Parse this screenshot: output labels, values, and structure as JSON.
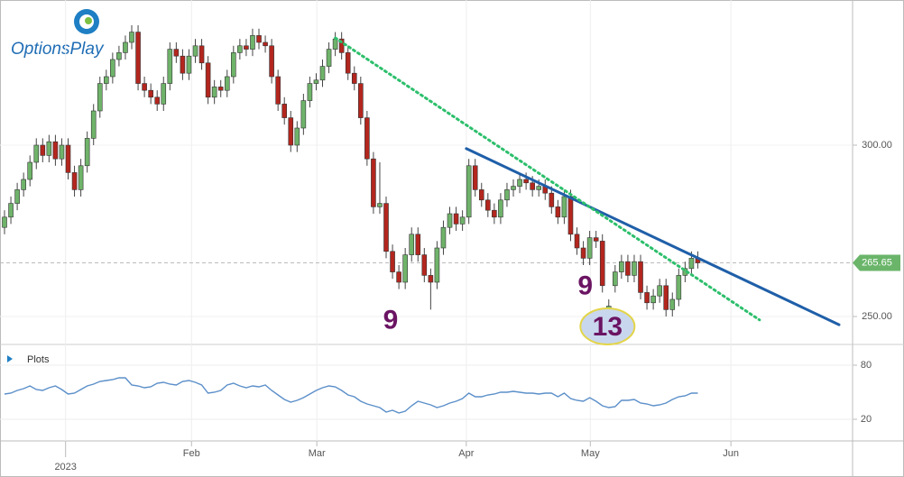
{
  "logo": "OptionsPlay",
  "chart_data": {
    "type": "candlestick",
    "panel_label": "Plots",
    "open": [
      276,
      279,
      283,
      287,
      290,
      295,
      300,
      297,
      301,
      296,
      300,
      292,
      287,
      294,
      302,
      310,
      318,
      320,
      325,
      327,
      330,
      333,
      318,
      316,
      314,
      312,
      318,
      328,
      326,
      321,
      326,
      329,
      324,
      314,
      317,
      316,
      320,
      327,
      329,
      328,
      332,
      330,
      329,
      320,
      312,
      308,
      300,
      305,
      313,
      318,
      319,
      323,
      328,
      331,
      327,
      321,
      318,
      308,
      296,
      282,
      283,
      269,
      263,
      260,
      268,
      274,
      268,
      262,
      260,
      270,
      276,
      280,
      277,
      279,
      294,
      287,
      284,
      281,
      279,
      284,
      287,
      288,
      290,
      289,
      287,
      288,
      286,
      282,
      279,
      285,
      274,
      270,
      267,
      273,
      272,
      252,
      259,
      263,
      266,
      262,
      266,
      257,
      254,
      256,
      259,
      252,
      255,
      262,
      264,
      267
    ],
    "high": [
      281,
      285,
      289,
      292,
      297,
      302,
      302,
      303,
      303,
      302,
      302,
      294,
      296,
      304,
      312,
      320,
      322,
      327,
      329,
      332,
      335,
      335,
      320,
      318,
      316,
      320,
      330,
      330,
      328,
      328,
      331,
      331,
      326,
      319,
      319,
      322,
      329,
      331,
      331,
      334,
      334,
      332,
      331,
      322,
      314,
      310,
      307,
      315,
      320,
      321,
      325,
      330,
      333,
      333,
      329,
      323,
      320,
      310,
      298,
      295,
      285,
      271,
      265,
      270,
      276,
      276,
      270,
      264,
      272,
      278,
      282,
      282,
      281,
      296,
      296,
      289,
      286,
      283,
      286,
      289,
      290,
      292,
      292,
      291,
      290,
      290,
      288,
      284,
      287,
      287,
      276,
      272,
      275,
      275,
      274,
      255,
      265,
      268,
      268,
      268,
      268,
      259,
      258,
      261,
      261,
      257,
      264,
      266,
      269,
      269
    ],
    "low": [
      274,
      277,
      281,
      285,
      288,
      293,
      295,
      295,
      294,
      294,
      290,
      285,
      285,
      292,
      300,
      308,
      316,
      318,
      323,
      325,
      328,
      316,
      314,
      312,
      310,
      310,
      316,
      324,
      319,
      319,
      324,
      322,
      312,
      312,
      314,
      314,
      318,
      325,
      326,
      326,
      328,
      327,
      318,
      310,
      306,
      298,
      298,
      303,
      311,
      316,
      317,
      321,
      326,
      325,
      319,
      316,
      306,
      294,
      280,
      280,
      267,
      261,
      258,
      258,
      266,
      266,
      260,
      252,
      258,
      268,
      274,
      275,
      275,
      277,
      285,
      282,
      279,
      277,
      277,
      282,
      285,
      286,
      287,
      285,
      285,
      284,
      280,
      277,
      277,
      272,
      268,
      265,
      265,
      270,
      257,
      250,
      257,
      261,
      260,
      260,
      255,
      252,
      252,
      254,
      250,
      250,
      253,
      260,
      262,
      264
    ],
    "close": [
      279,
      283,
      287,
      290,
      295,
      300,
      297,
      301,
      296,
      300,
      292,
      287,
      294,
      302,
      310,
      318,
      320,
      325,
      327,
      330,
      333,
      318,
      316,
      314,
      312,
      318,
      328,
      326,
      321,
      326,
      329,
      324,
      314,
      317,
      316,
      320,
      327,
      329,
      328,
      332,
      330,
      329,
      320,
      312,
      308,
      300,
      305,
      313,
      318,
      319,
      323,
      328,
      331,
      327,
      321,
      318,
      308,
      296,
      282,
      283,
      269,
      263,
      260,
      268,
      274,
      268,
      262,
      260,
      270,
      276,
      280,
      277,
      279,
      294,
      287,
      284,
      281,
      279,
      284,
      287,
      288,
      290,
      289,
      287,
      288,
      286,
      282,
      279,
      285,
      274,
      270,
      267,
      273,
      272,
      259,
      253,
      263,
      266,
      262,
      266,
      257,
      254,
      256,
      259,
      252,
      255,
      262,
      264,
      267,
      265.65
    ],
    "up_color": "#6fb36a",
    "down_color": "#b3261e",
    "last_price": {
      "value": 265.65,
      "label": "265.65",
      "color": "#6ab56a"
    },
    "ylim": [
      241.84,
      341.05
    ],
    "yticks": [
      {
        "value": 250,
        "label": "250.00"
      },
      {
        "value": 300,
        "label": "300.00"
      }
    ],
    "xlim": [
      -0.71,
      133.33
    ],
    "xticks": [
      {
        "value": 9.6,
        "label": "2023"
      },
      {
        "value": 29.4,
        "label": "Feb"
      },
      {
        "value": 49.1,
        "label": "Mar"
      },
      {
        "value": 72.6,
        "label": "Apr"
      },
      {
        "value": 92.1,
        "label": "May"
      },
      {
        "value": 114.2,
        "label": "Jun"
      }
    ],
    "grid": true,
    "lines": [
      {
        "color": "#1f5fa8",
        "style": "solid",
        "x": [
          72.6,
          131.2
        ],
        "y": [
          299,
          247.6
        ]
      },
      {
        "color": "#2dbf6c",
        "style": "dotted",
        "x": [
          52,
          118.7
        ],
        "y": [
          331.3,
          249
        ]
      }
    ],
    "annotations": [
      {
        "text": "9",
        "x": 60.7,
        "y": 249
      },
      {
        "text": "9",
        "x": 91.3,
        "y": 259
      },
      {
        "text": "13",
        "x": 94.8,
        "y": 247.1,
        "circled": true
      }
    ],
    "indicator": {
      "type": "line",
      "color": "#5b8fc9",
      "values": [
        48,
        49,
        52,
        54,
        57,
        53,
        52,
        55,
        57,
        53,
        48,
        49,
        53,
        57,
        59,
        62,
        63,
        64,
        66,
        66,
        58,
        57,
        55,
        56,
        60,
        61,
        59,
        58,
        62,
        63,
        61,
        58,
        49,
        50,
        52,
        58,
        60,
        57,
        55,
        57,
        56,
        58,
        52,
        47,
        42,
        39,
        41,
        44,
        48,
        52,
        55,
        57,
        56,
        52,
        47,
        45,
        40,
        37,
        35,
        33,
        28,
        30,
        27,
        29,
        35,
        40,
        38,
        36,
        33,
        35,
        38,
        40,
        43,
        49,
        45,
        45,
        47,
        48,
        50,
        50,
        51,
        50,
        49,
        49,
        48,
        49,
        49,
        45,
        49,
        43,
        41,
        40,
        44,
        40,
        35,
        33,
        34,
        41,
        41,
        42,
        38,
        37,
        35,
        36,
        38,
        42,
        45,
        46,
        49,
        49
      ],
      "ylim": [
        -4,
        100
      ],
      "yticks": [
        20,
        80
      ]
    }
  }
}
